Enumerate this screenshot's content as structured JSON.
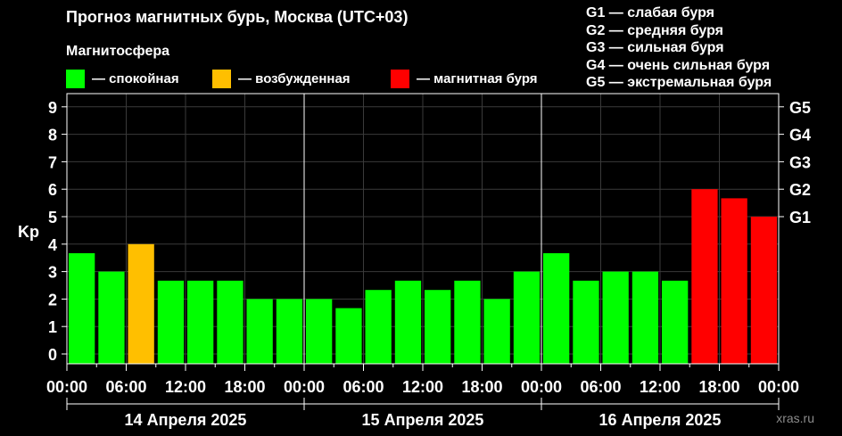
{
  "header": {
    "title": "Прогноз магнитных бурь, Москва (UTC+03)",
    "magnetosphere_label": "Магнитосфера"
  },
  "legend": [
    {
      "label": "— спокойная",
      "color": "#00ff00"
    },
    {
      "label": "— возбужденная",
      "color": "#ffbf00"
    },
    {
      "label": "— магнитная буря",
      "color": "#ff0000"
    }
  ],
  "g_scale": [
    "G1 — слабая буря",
    "G2 — средняя буря",
    "G3 — сильная буря",
    "G4 — очень сильная буря",
    "G5 — экстремальная буря"
  ],
  "watermark": "xras.ru",
  "chart_data": {
    "type": "bar",
    "ylabel": "Kp",
    "ylim": [
      0,
      9.5
    ],
    "yticks": [
      0,
      1,
      2,
      3,
      4,
      5,
      6,
      7,
      8,
      9
    ],
    "right_ticks": [
      {
        "value": 5,
        "label": "G1"
      },
      {
        "value": 6,
        "label": "G2"
      },
      {
        "value": 7,
        "label": "G3"
      },
      {
        "value": 8,
        "label": "G4"
      },
      {
        "value": 9,
        "label": "G5"
      }
    ],
    "grid": true,
    "bar_hours": 3,
    "xtick_labels": [
      "00:00",
      "06:00",
      "12:00",
      "18:00",
      "00:00",
      "06:00",
      "12:00",
      "18:00",
      "00:00",
      "06:00",
      "12:00",
      "18:00",
      "00:00"
    ],
    "days": [
      "14 Апреля 2025",
      "15 Апреля 2025",
      "16 Апреля 2025"
    ],
    "values": [
      3.67,
      3.0,
      4.0,
      2.67,
      2.67,
      2.67,
      2.0,
      2.0,
      2.0,
      1.67,
      2.33,
      2.67,
      2.33,
      2.67,
      2.0,
      3.0,
      3.67,
      2.67,
      3.0,
      3.0,
      2.67,
      6.0,
      5.67,
      5.0
    ],
    "states": [
      "calm",
      "calm",
      "excited",
      "calm",
      "calm",
      "calm",
      "calm",
      "calm",
      "calm",
      "calm",
      "calm",
      "calm",
      "calm",
      "calm",
      "calm",
      "calm",
      "calm",
      "calm",
      "calm",
      "calm",
      "calm",
      "storm",
      "storm",
      "storm"
    ],
    "state_colors": {
      "calm": "#00ff00",
      "excited": "#ffbf00",
      "storm": "#ff0000"
    },
    "grid_color": "#3a3a3a"
  }
}
